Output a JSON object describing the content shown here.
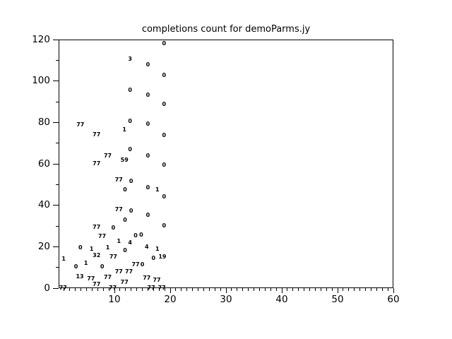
{
  "figure": {
    "background": "#ffffff",
    "foreground": "#000000"
  },
  "chart_data": {
    "type": "scatter",
    "title": "completions count for demoParms.jy",
    "xlabel": "",
    "ylabel": "",
    "xlim": [
      0,
      60
    ],
    "ylim": [
      0,
      120
    ],
    "x_major_ticks": [
      10,
      20,
      30,
      40,
      50,
      60
    ],
    "x_minor_tick_step": 1,
    "y_major_ticks": [
      0,
      20,
      40,
      60,
      80,
      100,
      120
    ],
    "y_minor_tick_step": 10,
    "grid": false,
    "legend": "none",
    "marker": "text-label",
    "points": [
      {
        "x": 18.9,
        "y": 118.0,
        "label": "0"
      },
      {
        "x": 12.8,
        "y": 110.5,
        "label": "3"
      },
      {
        "x": 16.0,
        "y": 107.7,
        "label": "0"
      },
      {
        "x": 18.9,
        "y": 102.6,
        "label": "0"
      },
      {
        "x": 12.8,
        "y": 95.5,
        "label": "0"
      },
      {
        "x": 16.0,
        "y": 93.1,
        "label": "0"
      },
      {
        "x": 18.9,
        "y": 88.6,
        "label": "0"
      },
      {
        "x": 12.8,
        "y": 80.5,
        "label": "0"
      },
      {
        "x": 16.0,
        "y": 79.1,
        "label": "0"
      },
      {
        "x": 3.9,
        "y": 78.8,
        "label": "77"
      },
      {
        "x": 11.8,
        "y": 76.4,
        "label": "1"
      },
      {
        "x": 6.8,
        "y": 74.0,
        "label": "77"
      },
      {
        "x": 18.9,
        "y": 73.6,
        "label": "0"
      },
      {
        "x": 12.8,
        "y": 66.8,
        "label": "0"
      },
      {
        "x": 8.8,
        "y": 63.8,
        "label": "77"
      },
      {
        "x": 16.0,
        "y": 63.8,
        "label": "0"
      },
      {
        "x": 11.8,
        "y": 61.7,
        "label": "59"
      },
      {
        "x": 6.8,
        "y": 60.0,
        "label": "77"
      },
      {
        "x": 18.9,
        "y": 59.3,
        "label": "0"
      },
      {
        "x": 10.8,
        "y": 52.2,
        "label": "77"
      },
      {
        "x": 13.0,
        "y": 51.5,
        "label": "0"
      },
      {
        "x": 16.0,
        "y": 48.4,
        "label": "0"
      },
      {
        "x": 11.9,
        "y": 47.4,
        "label": "0"
      },
      {
        "x": 17.7,
        "y": 47.4,
        "label": "1"
      },
      {
        "x": 18.9,
        "y": 44.0,
        "label": "0"
      },
      {
        "x": 10.8,
        "y": 37.8,
        "label": "77"
      },
      {
        "x": 13.0,
        "y": 37.2,
        "label": "0"
      },
      {
        "x": 16.0,
        "y": 35.1,
        "label": "0"
      },
      {
        "x": 11.9,
        "y": 32.7,
        "label": "0"
      },
      {
        "x": 18.9,
        "y": 30.0,
        "label": "0"
      },
      {
        "x": 6.8,
        "y": 29.3,
        "label": "77"
      },
      {
        "x": 9.8,
        "y": 29.0,
        "label": "0"
      },
      {
        "x": 14.8,
        "y": 25.6,
        "label": "0"
      },
      {
        "x": 13.8,
        "y": 25.2,
        "label": "0"
      },
      {
        "x": 7.8,
        "y": 24.9,
        "label": "77"
      },
      {
        "x": 10.8,
        "y": 22.5,
        "label": "1"
      },
      {
        "x": 12.8,
        "y": 21.8,
        "label": "4"
      },
      {
        "x": 15.8,
        "y": 19.8,
        "label": "4"
      },
      {
        "x": 3.9,
        "y": 19.4,
        "label": "0"
      },
      {
        "x": 8.8,
        "y": 19.4,
        "label": "1"
      },
      {
        "x": 5.9,
        "y": 18.8,
        "label": "1"
      },
      {
        "x": 17.7,
        "y": 18.8,
        "label": "1"
      },
      {
        "x": 11.9,
        "y": 18.1,
        "label": "0"
      },
      {
        "x": 6.8,
        "y": 15.7,
        "label": "32"
      },
      {
        "x": 9.8,
        "y": 15.0,
        "label": "77"
      },
      {
        "x": 18.6,
        "y": 15.0,
        "label": "19"
      },
      {
        "x": 17.0,
        "y": 14.3,
        "label": "0"
      },
      {
        "x": 0.9,
        "y": 14.0,
        "label": "1"
      },
      {
        "x": 4.9,
        "y": 11.9,
        "label": "1"
      },
      {
        "x": 13.8,
        "y": 11.3,
        "label": "77"
      },
      {
        "x": 15.0,
        "y": 11.3,
        "label": "0"
      },
      {
        "x": 3.1,
        "y": 10.2,
        "label": "0"
      },
      {
        "x": 7.8,
        "y": 10.2,
        "label": "0"
      },
      {
        "x": 10.8,
        "y": 7.8,
        "label": "77"
      },
      {
        "x": 12.6,
        "y": 7.8,
        "label": "77"
      },
      {
        "x": 3.8,
        "y": 5.5,
        "label": "13"
      },
      {
        "x": 8.8,
        "y": 5.1,
        "label": "77"
      },
      {
        "x": 15.8,
        "y": 4.8,
        "label": "77"
      },
      {
        "x": 5.8,
        "y": 4.4,
        "label": "77"
      },
      {
        "x": 17.6,
        "y": 3.8,
        "label": "77"
      },
      {
        "x": 11.8,
        "y": 2.7,
        "label": "77"
      },
      {
        "x": 6.8,
        "y": 1.7,
        "label": "77"
      },
      {
        "x": 0.8,
        "y": 0.0,
        "label": "77"
      },
      {
        "x": 9.7,
        "y": 0.0,
        "label": "77"
      },
      {
        "x": 16.6,
        "y": 0.0,
        "label": "77"
      },
      {
        "x": 18.5,
        "y": 0.0,
        "label": "77"
      }
    ]
  }
}
